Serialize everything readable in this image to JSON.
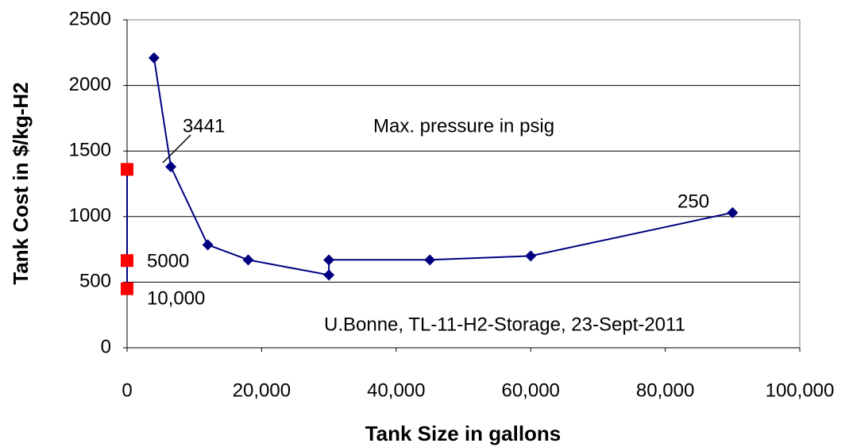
{
  "chart_data": {
    "type": "scatter",
    "xlabel": "Tank Size in gallons",
    "ylabel": "Tank Cost in $/kg-H2",
    "xlim": [
      0,
      100000
    ],
    "xticks": [
      0,
      {
        "value": 20000,
        "label": "20,000"
      },
      {
        "value": 40000,
        "label": "40,000"
      },
      {
        "value": 60000,
        "label": "60,000"
      },
      {
        "value": 80000,
        "label": "80,000"
      },
      {
        "value": 100000,
        "label": "100,000"
      }
    ],
    "ylim": [
      0,
      2500
    ],
    "yticks": [
      0,
      500,
      1000,
      1500,
      2000,
      2500
    ],
    "grid": true,
    "series": [
      {
        "color": "#000080",
        "marker": "diamond",
        "x": [
          4000,
          6500,
          12000,
          18000,
          30000,
          30000,
          45000,
          60000,
          90000
        ],
        "values": [
          2210,
          1380,
          785,
          670,
          555,
          670,
          670,
          700,
          1030
        ]
      },
      {
        "color": "#ff0000",
        "line_color": "#000080",
        "marker": "square",
        "x": [
          0,
          0,
          0
        ],
        "values": [
          1360,
          665,
          450
        ]
      }
    ],
    "annotations": [
      "3441",
      "5000",
      "10,000",
      "250",
      "Max. pressure in psig",
      "U.Bonne, TL-11-H2-Storage, 23-Sept-2011"
    ]
  }
}
